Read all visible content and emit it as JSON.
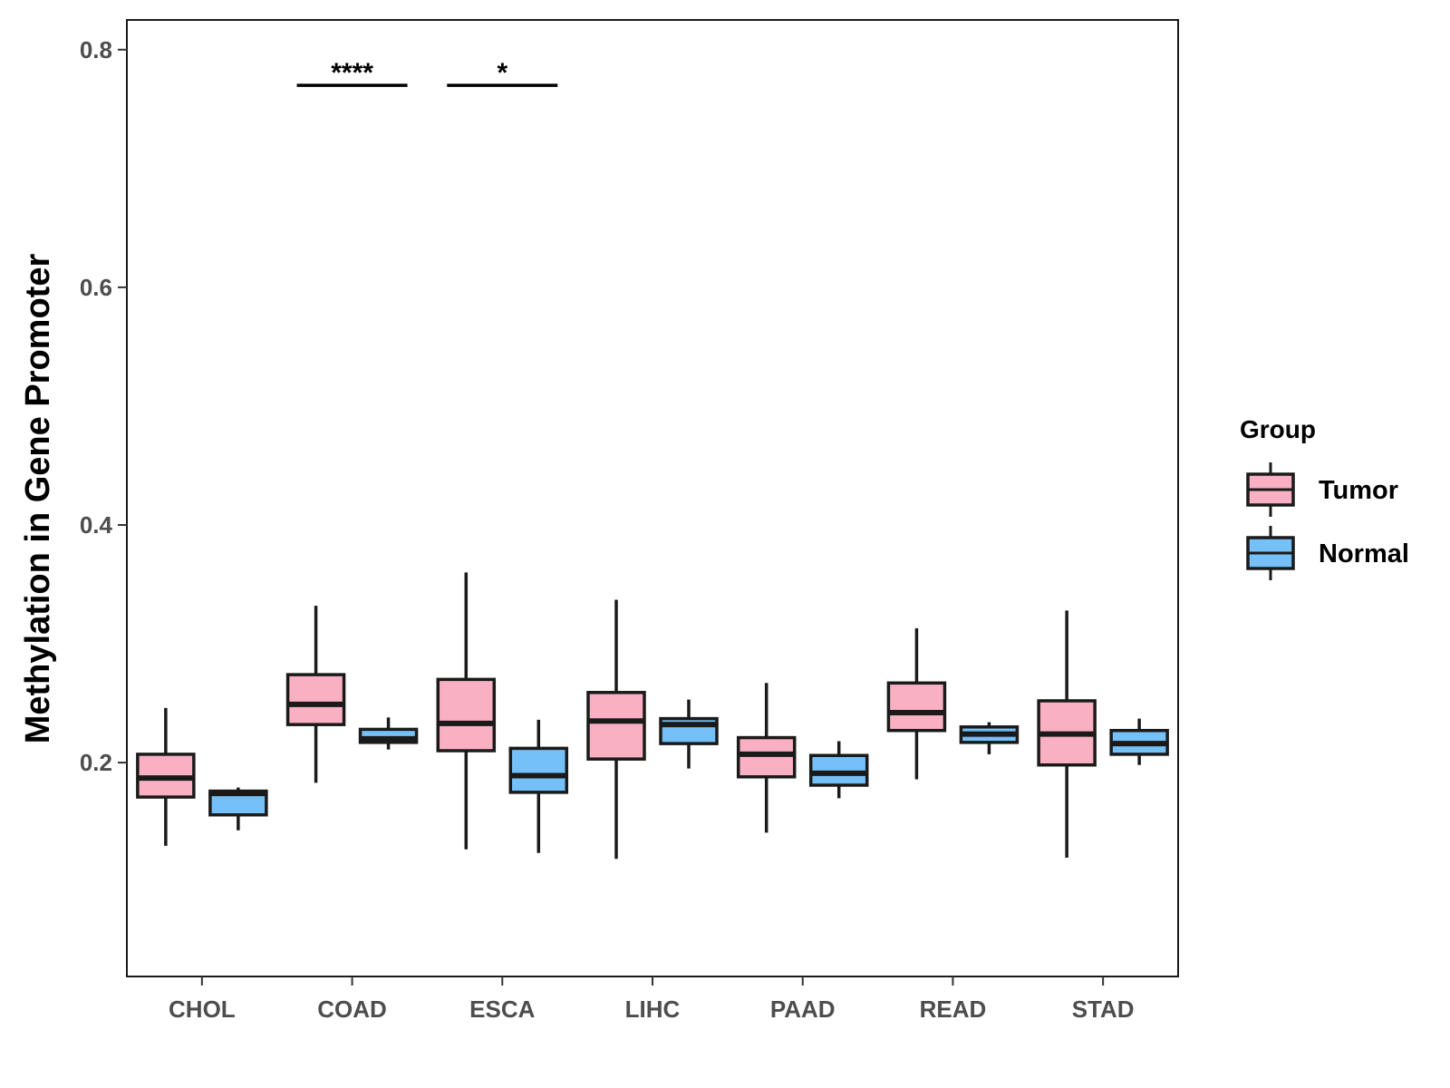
{
  "chart_data": {
    "type": "boxplot",
    "title": "",
    "xlabel": "",
    "ylabel": "Methylation in Gene Promoter",
    "ylim": [
      0.02,
      0.825
    ],
    "yticks": [
      0.2,
      0.4,
      0.6,
      0.8
    ],
    "ytick_labels": [
      "0.2",
      "0.4",
      "0.6",
      "0.8"
    ],
    "grid": false,
    "categories": [
      "CHOL",
      "COAD",
      "ESCA",
      "LIHC",
      "PAAD",
      "READ",
      "STAD"
    ],
    "legend": {
      "title": "Group",
      "position": "right",
      "entries": [
        {
          "name": "Tumor",
          "color": "#F9B0C3"
        },
        {
          "name": "Normal",
          "color": "#74C0F7"
        }
      ]
    },
    "series": [
      {
        "name": "Tumor",
        "color": "#F9B0C3",
        "boxes": [
          {
            "category": "CHOL",
            "whisker_low": 0.13,
            "q1": 0.171,
            "median": 0.187,
            "q3": 0.207,
            "whisker_high": 0.246
          },
          {
            "category": "COAD",
            "whisker_low": 0.183,
            "q1": 0.232,
            "median": 0.249,
            "q3": 0.274,
            "whisker_high": 0.332
          },
          {
            "category": "ESCA",
            "whisker_low": 0.127,
            "q1": 0.21,
            "median": 0.233,
            "q3": 0.27,
            "whisker_high": 0.36
          },
          {
            "category": "LIHC",
            "whisker_low": 0.119,
            "q1": 0.203,
            "median": 0.235,
            "q3": 0.259,
            "whisker_high": 0.337
          },
          {
            "category": "PAAD",
            "whisker_low": 0.141,
            "q1": 0.188,
            "median": 0.207,
            "q3": 0.221,
            "whisker_high": 0.267
          },
          {
            "category": "READ",
            "whisker_low": 0.186,
            "q1": 0.227,
            "median": 0.242,
            "q3": 0.267,
            "whisker_high": 0.313
          },
          {
            "category": "STAD",
            "whisker_low": 0.12,
            "q1": 0.198,
            "median": 0.224,
            "q3": 0.252,
            "whisker_high": 0.328
          }
        ]
      },
      {
        "name": "Normal",
        "color": "#74C0F7",
        "boxes": [
          {
            "category": "CHOL",
            "whisker_low": 0.143,
            "q1": 0.156,
            "median": 0.174,
            "q3": 0.176,
            "whisker_high": 0.179
          },
          {
            "category": "COAD",
            "whisker_low": 0.211,
            "q1": 0.217,
            "median": 0.22,
            "q3": 0.228,
            "whisker_high": 0.238
          },
          {
            "category": "ESCA",
            "whisker_low": 0.124,
            "q1": 0.175,
            "median": 0.189,
            "q3": 0.212,
            "whisker_high": 0.236
          },
          {
            "category": "LIHC",
            "whisker_low": 0.195,
            "q1": 0.216,
            "median": 0.232,
            "q3": 0.237,
            "whisker_high": 0.253
          },
          {
            "category": "PAAD",
            "whisker_low": 0.17,
            "q1": 0.181,
            "median": 0.191,
            "q3": 0.206,
            "whisker_high": 0.218
          },
          {
            "category": "READ",
            "whisker_low": 0.207,
            "q1": 0.217,
            "median": 0.224,
            "q3": 0.23,
            "whisker_high": 0.234
          },
          {
            "category": "STAD",
            "whisker_low": 0.198,
            "q1": 0.207,
            "median": 0.216,
            "q3": 0.227,
            "whisker_high": 0.237
          }
        ]
      }
    ],
    "annotations": [
      {
        "category": "COAD",
        "label": "****",
        "y": 0.77
      },
      {
        "category": "ESCA",
        "label": "*",
        "y": 0.77
      }
    ]
  }
}
